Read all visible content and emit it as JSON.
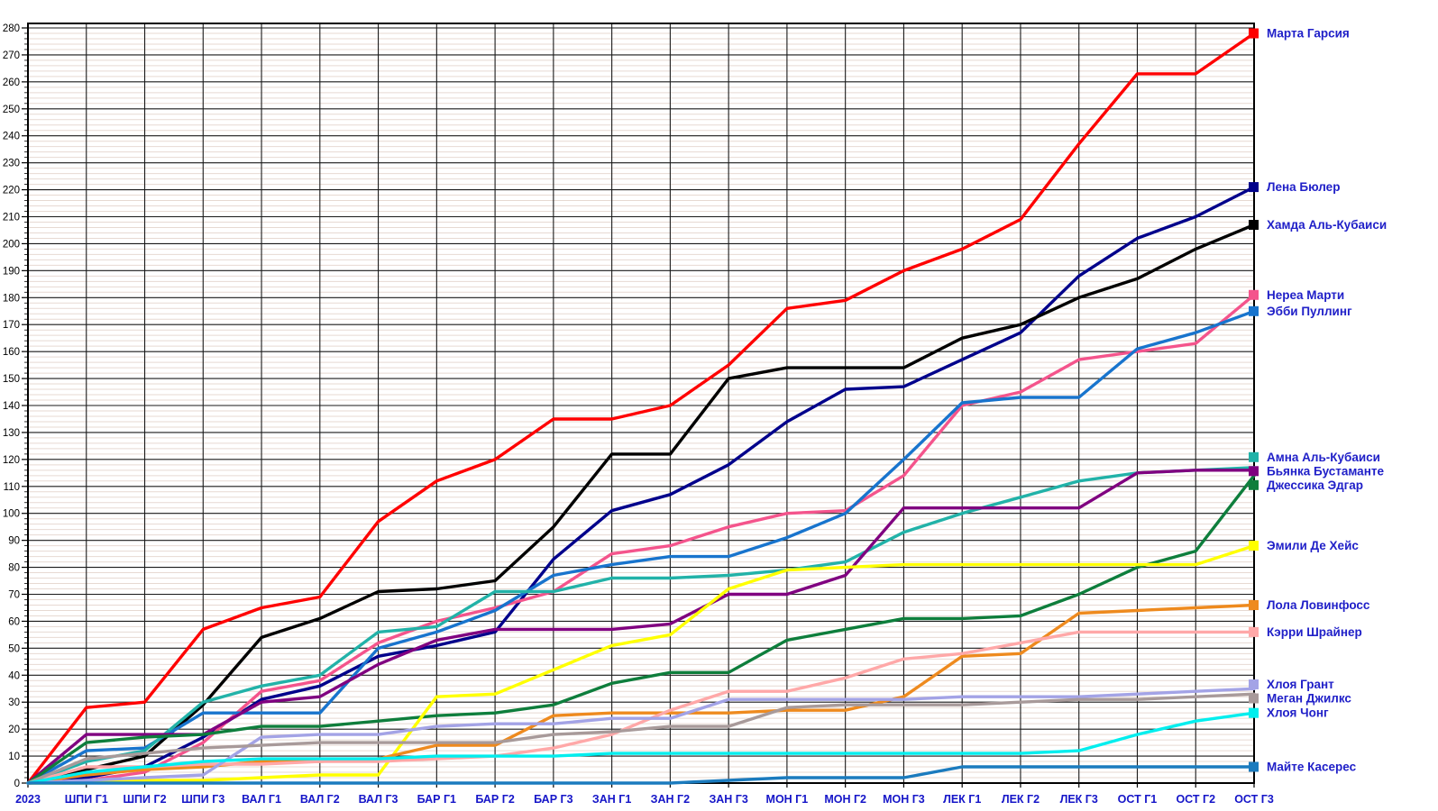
{
  "chart_data": {
    "type": "line",
    "title": "",
    "x_labels": [
      "2023",
      "ШПИ Г1",
      "ШПИ Г2",
      "ШПИ Г3",
      "ВАЛ Г1",
      "ВАЛ Г2",
      "ВАЛ Г3",
      "БАР Г1",
      "БАР Г2",
      "БАР Г3",
      "ЗАН Г1",
      "ЗАН Г2",
      "ЗАН Г3",
      "МОН Г1",
      "МОН Г2",
      "МОН Г3",
      "ЛЕК Г1",
      "ЛЕК Г2",
      "ЛЕК Г3",
      "ОСТ Г1",
      "ОСТ Г2",
      "ОСТ Г3"
    ],
    "y_axis": {
      "min": 0,
      "max": 280,
      "step": 10
    },
    "grid": {
      "major_horizontal": true,
      "minor_horizontal_step": 2,
      "vertical_at_each_x": true
    },
    "legend_position": "right-at-line-endpoints",
    "colors": {
      "x_label_text": "#1515C8",
      "y_label_text": "#000000",
      "legend_text": "#2020C8",
      "grid_major": "#1a1a1a",
      "grid_minor": "#E7D9D2",
      "plot_border": "#000000",
      "background": "#FFFFFF"
    },
    "series": [
      {
        "name": "Марта Гарсия",
        "color": "#FF0000",
        "values": [
          0,
          28,
          30,
          57,
          65,
          69,
          97,
          112,
          120,
          135,
          135,
          140,
          155,
          176,
          179,
          190,
          198,
          209,
          237,
          263,
          263,
          278
        ]
      },
      {
        "name": "Лена Бюлер",
        "color": "#00008B",
        "values": [
          0,
          2,
          6,
          17,
          31,
          36,
          47,
          51,
          56,
          83,
          101,
          107,
          118,
          134,
          146,
          147,
          157,
          167,
          188,
          202,
          210,
          221
        ]
      },
      {
        "name": "Хамда Аль-Кубаиси",
        "color": "#000000",
        "values": [
          0,
          5,
          10,
          29,
          54,
          61,
          71,
          72,
          75,
          95,
          122,
          122,
          150,
          154,
          154,
          154,
          165,
          170,
          180,
          187,
          198,
          207
        ]
      },
      {
        "name": "Нереа Марти",
        "color": "#F4548C",
        "values": [
          0,
          1,
          4,
          15,
          34,
          38,
          52,
          60,
          65,
          71,
          85,
          88,
          95,
          100,
          101,
          114,
          140,
          145,
          157,
          160,
          163,
          181
        ]
      },
      {
        "name": "Эбби Пуллинг",
        "color": "#1874CD",
        "values": [
          0,
          12,
          13,
          26,
          26,
          26,
          50,
          56,
          64,
          77,
          81,
          84,
          84,
          91,
          100,
          120,
          141,
          143,
          143,
          161,
          167,
          175
        ]
      },
      {
        "name": "Амна Аль-Кубаиси",
        "color": "#22B2A8",
        "values": [
          0,
          8,
          12,
          30,
          36,
          40,
          56,
          58,
          71,
          71,
          76,
          76,
          77,
          79,
          82,
          93,
          100,
          106,
          112,
          115,
          116,
          117
        ]
      },
      {
        "name": "Бьянка Бустаманте",
        "color": "#800080",
        "values": [
          0,
          18,
          18,
          18,
          30,
          32,
          44,
          53,
          57,
          57,
          57,
          59,
          70,
          70,
          77,
          102,
          102,
          102,
          102,
          115,
          116,
          116
        ]
      },
      {
        "name": "Джессика Эдгар",
        "color": "#0E7E3C",
        "values": [
          0,
          15,
          17,
          18,
          21,
          21,
          23,
          25,
          26,
          29,
          37,
          41,
          41,
          53,
          57,
          61,
          61,
          62,
          70,
          80,
          86,
          114
        ]
      },
      {
        "name": "Эмили Де Хейс",
        "color": "#FFFF00",
        "values": [
          0,
          0,
          1,
          1,
          2,
          3,
          3,
          32,
          33,
          42,
          51,
          55,
          72,
          79,
          80,
          81,
          81,
          81,
          81,
          81,
          81,
          88
        ]
      },
      {
        "name": "Лола Ловинфосс",
        "color": "#EE8A1E",
        "values": [
          0,
          3,
          5,
          6,
          8,
          8,
          9,
          14,
          14,
          25,
          26,
          26,
          26,
          27,
          27,
          32,
          47,
          48,
          63,
          64,
          65,
          66
        ]
      },
      {
        "name": "Кэрри Шрайнер",
        "color": "#FFA8A8",
        "values": [
          0,
          6,
          6,
          7,
          7,
          8,
          8,
          9,
          10,
          13,
          18,
          27,
          34,
          34,
          39,
          46,
          48,
          52,
          56,
          56,
          56,
          56
        ]
      },
      {
        "name": "Хлоя Грант",
        "color": "#A3A3E6",
        "values": [
          0,
          1,
          2,
          3,
          17,
          18,
          18,
          21,
          22,
          22,
          24,
          24,
          31,
          31,
          31,
          31,
          32,
          32,
          32,
          33,
          34,
          35
        ]
      },
      {
        "name": "Меган Джилкс",
        "color": "#A89A9A",
        "values": [
          0,
          9,
          11,
          13,
          14,
          15,
          15,
          15,
          15,
          18,
          19,
          21,
          21,
          28,
          29,
          29,
          29,
          30,
          31,
          31,
          32,
          33
        ]
      },
      {
        "name": "Хлоя Чонг",
        "color": "#00EEEE",
        "values": [
          0,
          4,
          6,
          8,
          9,
          9,
          9,
          10,
          10,
          10,
          11,
          11,
          11,
          11,
          11,
          11,
          11,
          11,
          12,
          18,
          23,
          26
        ]
      },
      {
        "name": "Майте Касерес",
        "color": "#1B7BBE",
        "values": [
          0,
          0,
          0,
          0,
          0,
          0,
          0,
          0,
          0,
          0,
          0,
          0,
          1,
          2,
          2,
          2,
          6,
          6,
          6,
          6,
          6,
          6
        ]
      }
    ]
  }
}
